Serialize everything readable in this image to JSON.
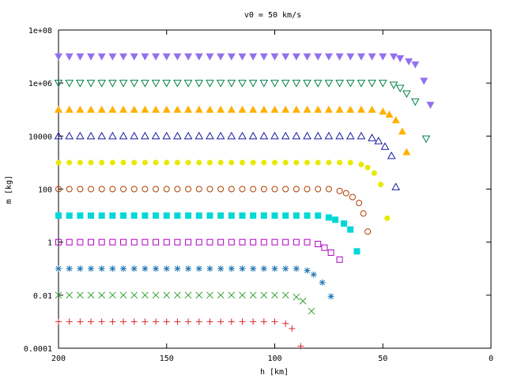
{
  "chart_data": {
    "type": "scatter",
    "title": "v0 = 50 km/s",
    "xlabel": "h [km]",
    "ylabel": "m [kg]",
    "xlim": [
      200,
      0
    ],
    "ylim": [
      0.0001,
      100000000
    ],
    "yscale": "log",
    "grid": false,
    "legend": "none",
    "x_ticks": [
      {
        "value": 200,
        "label": "200"
      },
      {
        "value": 150,
        "label": "150"
      },
      {
        "value": 100,
        "label": "100"
      },
      {
        "value": 50,
        "label": "50"
      },
      {
        "value": 0,
        "label": "0"
      }
    ],
    "y_ticks": [
      {
        "value": 100000000,
        "label": "1e+08"
      },
      {
        "value": 1000000,
        "label": "1e+06"
      },
      {
        "value": 10000,
        "label": "10000"
      },
      {
        "value": 100,
        "label": "100"
      },
      {
        "value": 1,
        "label": "1"
      },
      {
        "value": 0.01,
        "label": "0.01"
      },
      {
        "value": 0.0001,
        "label": "0.0001"
      }
    ],
    "series": [
      {
        "marker": "plus",
        "color": "#d62728",
        "m0": 0.001,
        "x_end": 88,
        "tail": [
          [
            95,
            0.00085
          ],
          [
            92,
            0.00055
          ],
          [
            88,
            0.00012
          ]
        ]
      },
      {
        "marker": "cross",
        "color": "#2ca02c",
        "m0": 0.01,
        "x_end": 83,
        "tail": [
          [
            90,
            0.0085
          ],
          [
            87,
            0.006
          ],
          [
            83,
            0.0025
          ]
        ]
      },
      {
        "marker": "star",
        "color": "#1f77b4",
        "m0": 0.1,
        "x_end": 74,
        "tail": [
          [
            85,
            0.085
          ],
          [
            82,
            0.06
          ],
          [
            78,
            0.03
          ],
          [
            74,
            0.009
          ]
        ]
      },
      {
        "marker": "square-open",
        "color": "#b000c0",
        "m0": 1,
        "x_end": 70,
        "tail": [
          [
            80,
            0.85
          ],
          [
            77,
            0.62
          ],
          [
            74,
            0.4
          ],
          [
            70,
            0.22
          ]
        ]
      },
      {
        "marker": "square-filled",
        "color": "#00d8d8",
        "m0": 10,
        "x_end": 62,
        "tail": [
          [
            75,
            8.5
          ],
          [
            72,
            7
          ],
          [
            68,
            5
          ],
          [
            65,
            3
          ],
          [
            62,
            0.45
          ]
        ]
      },
      {
        "marker": "circle-open",
        "color": "#b04000",
        "m0": 100,
        "x_end": 57,
        "tail": [
          [
            70,
            85
          ],
          [
            67,
            70
          ],
          [
            64,
            50
          ],
          [
            61,
            30
          ],
          [
            59,
            12
          ],
          [
            57,
            2.5
          ]
        ]
      },
      {
        "marker": "circle-filled",
        "color": "#e8e800",
        "m0": 1000,
        "x_end": 48,
        "tail": [
          [
            60,
            850
          ],
          [
            57,
            650
          ],
          [
            54,
            400
          ],
          [
            51,
            150
          ],
          [
            48,
            8
          ]
        ]
      },
      {
        "marker": "triangle-up-open",
        "color": "#1a1aa0",
        "m0": 10000,
        "x_end": 44,
        "tail": [
          [
            55,
            8500
          ],
          [
            52,
            6500
          ],
          [
            49,
            4000
          ],
          [
            46,
            1800
          ],
          [
            44,
            120
          ]
        ]
      },
      {
        "marker": "triangle-up-filled",
        "color": "#ffb000",
        "m0": 100000,
        "x_end": 39,
        "tail": [
          [
            50,
            85000
          ],
          [
            47,
            65000
          ],
          [
            44,
            40000
          ],
          [
            41,
            15000
          ],
          [
            39,
            2500
          ]
        ]
      },
      {
        "marker": "triangle-down-open",
        "color": "#00804a",
        "m0": 1000000,
        "x_end": 30,
        "tail": [
          [
            45,
            850000
          ],
          [
            42,
            650000
          ],
          [
            39,
            400000
          ],
          [
            35,
            200000
          ],
          [
            30,
            8000
          ]
        ]
      },
      {
        "marker": "triangle-down-filled",
        "color": "#9370ee",
        "m0": 10000000,
        "x_end": 28,
        "tail": [
          [
            42,
            8500000
          ],
          [
            38,
            6500000
          ],
          [
            35,
            5000000
          ],
          [
            31,
            1200000
          ],
          [
            28,
            150000
          ]
        ]
      }
    ]
  }
}
